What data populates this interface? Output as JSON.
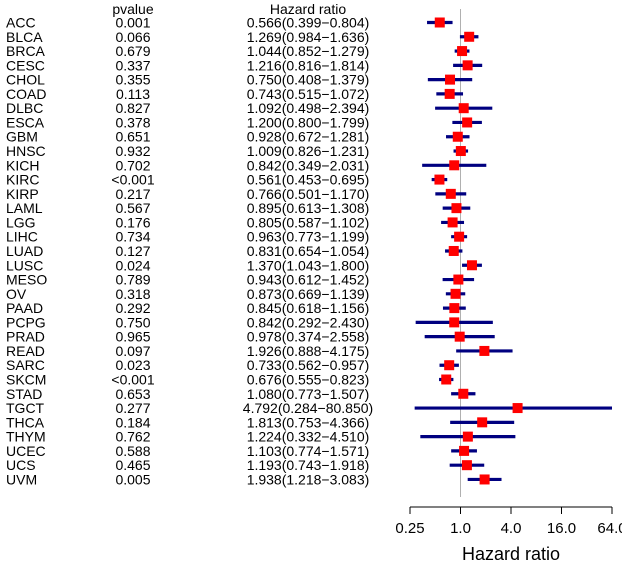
{
  "chart_data": {
    "type": "forest",
    "headers": {
      "pvalue": "pvalue",
      "hr": "Hazard ratio"
    },
    "xlabel": "Hazard ratio",
    "x_scale": "log2",
    "xlim": [
      0.25,
      64.0
    ],
    "x_ticks": [
      {
        "value": 0.25,
        "label": "0.25"
      },
      {
        "value": 1.0,
        "label": "1.0"
      },
      {
        "value": 4.0,
        "label": "4.0"
      },
      {
        "value": 16.0,
        "label": "16.0"
      },
      {
        "value": 64.0,
        "label": "64.0"
      }
    ],
    "reference_line": 1.0,
    "colors": {
      "point": "#ff0000",
      "ci": "#000080",
      "reference": "#b0b0b0",
      "axis": "#000000"
    },
    "rows": [
      {
        "label": "ACC",
        "pvalue": "0.001",
        "hr_text": "0.566(0.399−0.804)",
        "hr": 0.566,
        "lo": 0.399,
        "hi": 0.804
      },
      {
        "label": "BLCA",
        "pvalue": "0.066",
        "hr_text": "1.269(0.984−1.636)",
        "hr": 1.269,
        "lo": 0.984,
        "hi": 1.636
      },
      {
        "label": "BRCA",
        "pvalue": "0.679",
        "hr_text": "1.044(0.852−1.279)",
        "hr": 1.044,
        "lo": 0.852,
        "hi": 1.279
      },
      {
        "label": "CESC",
        "pvalue": "0.337",
        "hr_text": "1.216(0.816−1.814)",
        "hr": 1.216,
        "lo": 0.816,
        "hi": 1.814
      },
      {
        "label": "CHOL",
        "pvalue": "0.355",
        "hr_text": "0.750(0.408−1.379)",
        "hr": 0.75,
        "lo": 0.408,
        "hi": 1.379
      },
      {
        "label": "COAD",
        "pvalue": "0.113",
        "hr_text": "0.743(0.515−1.072)",
        "hr": 0.743,
        "lo": 0.515,
        "hi": 1.072
      },
      {
        "label": "DLBC",
        "pvalue": "0.827",
        "hr_text": "1.092(0.498−2.394)",
        "hr": 1.092,
        "lo": 0.498,
        "hi": 2.394
      },
      {
        "label": "ESCA",
        "pvalue": "0.378",
        "hr_text": "1.200(0.800−1.799)",
        "hr": 1.2,
        "lo": 0.8,
        "hi": 1.799
      },
      {
        "label": "GBM",
        "pvalue": "0.651",
        "hr_text": "0.928(0.672−1.281)",
        "hr": 0.928,
        "lo": 0.672,
        "hi": 1.281
      },
      {
        "label": "HNSC",
        "pvalue": "0.932",
        "hr_text": "1.009(0.826−1.231)",
        "hr": 1.009,
        "lo": 0.826,
        "hi": 1.231
      },
      {
        "label": "KICH",
        "pvalue": "0.702",
        "hr_text": "0.842(0.349−2.031)",
        "hr": 0.842,
        "lo": 0.349,
        "hi": 2.031
      },
      {
        "label": "KIRC",
        "pvalue": "<0.001",
        "hr_text": "0.561(0.453−0.695)",
        "hr": 0.561,
        "lo": 0.453,
        "hi": 0.695
      },
      {
        "label": "KIRP",
        "pvalue": "0.217",
        "hr_text": "0.766(0.501−1.170)",
        "hr": 0.766,
        "lo": 0.501,
        "hi": 1.17
      },
      {
        "label": "LAML",
        "pvalue": "0.567",
        "hr_text": "0.895(0.613−1.308)",
        "hr": 0.895,
        "lo": 0.613,
        "hi": 1.308
      },
      {
        "label": "LGG",
        "pvalue": "0.176",
        "hr_text": "0.805(0.587−1.102)",
        "hr": 0.805,
        "lo": 0.587,
        "hi": 1.102
      },
      {
        "label": "LIHC",
        "pvalue": "0.734",
        "hr_text": "0.963(0.773−1.199)",
        "hr": 0.963,
        "lo": 0.773,
        "hi": 1.199
      },
      {
        "label": "LUAD",
        "pvalue": "0.127",
        "hr_text": "0.831(0.654−1.054)",
        "hr": 0.831,
        "lo": 0.654,
        "hi": 1.054
      },
      {
        "label": "LUSC",
        "pvalue": "0.024",
        "hr_text": "1.370(1.043−1.800)",
        "hr": 1.37,
        "lo": 1.043,
        "hi": 1.8
      },
      {
        "label": "MESO",
        "pvalue": "0.789",
        "hr_text": "0.943(0.612−1.452)",
        "hr": 0.943,
        "lo": 0.612,
        "hi": 1.452
      },
      {
        "label": "OV",
        "pvalue": "0.318",
        "hr_text": "0.873(0.669−1.139)",
        "hr": 0.873,
        "lo": 0.669,
        "hi": 1.139
      },
      {
        "label": "PAAD",
        "pvalue": "0.292",
        "hr_text": "0.845(0.618−1.156)",
        "hr": 0.845,
        "lo": 0.618,
        "hi": 1.156
      },
      {
        "label": "PCPG",
        "pvalue": "0.750",
        "hr_text": "0.842(0.292−2.430)",
        "hr": 0.842,
        "lo": 0.292,
        "hi": 2.43
      },
      {
        "label": "PRAD",
        "pvalue": "0.965",
        "hr_text": "0.978(0.374−2.558)",
        "hr": 0.978,
        "lo": 0.374,
        "hi": 2.558
      },
      {
        "label": "READ",
        "pvalue": "0.097",
        "hr_text": "1.926(0.888−4.175)",
        "hr": 1.926,
        "lo": 0.888,
        "hi": 4.175
      },
      {
        "label": "SARC",
        "pvalue": "0.023",
        "hr_text": "0.733(0.562−0.957)",
        "hr": 0.733,
        "lo": 0.562,
        "hi": 0.957
      },
      {
        "label": "SKCM",
        "pvalue": "<0.001",
        "hr_text": "0.676(0.555−0.823)",
        "hr": 0.676,
        "lo": 0.555,
        "hi": 0.823
      },
      {
        "label": "STAD",
        "pvalue": "0.653",
        "hr_text": "1.080(0.773−1.507)",
        "hr": 1.08,
        "lo": 0.773,
        "hi": 1.507
      },
      {
        "label": "TGCT",
        "pvalue": "0.277",
        "hr_text": "4.792(0.284−80.850)",
        "hr": 4.792,
        "lo": 0.284,
        "hi": 80.85
      },
      {
        "label": "THCA",
        "pvalue": "0.184",
        "hr_text": "1.813(0.753−4.366)",
        "hr": 1.813,
        "lo": 0.753,
        "hi": 4.366
      },
      {
        "label": "THYM",
        "pvalue": "0.762",
        "hr_text": "1.224(0.332−4.510)",
        "hr": 1.224,
        "lo": 0.332,
        "hi": 4.51
      },
      {
        "label": "UCEC",
        "pvalue": "0.588",
        "hr_text": "1.103(0.774−1.571)",
        "hr": 1.103,
        "lo": 0.774,
        "hi": 1.571
      },
      {
        "label": "UCS",
        "pvalue": "0.465",
        "hr_text": "1.193(0.743−1.918)",
        "hr": 1.193,
        "lo": 0.743,
        "hi": 1.918
      },
      {
        "label": "UVM",
        "pvalue": "0.005",
        "hr_text": "1.938(1.218−3.083)",
        "hr": 1.938,
        "lo": 1.218,
        "hi": 3.083
      }
    ]
  }
}
